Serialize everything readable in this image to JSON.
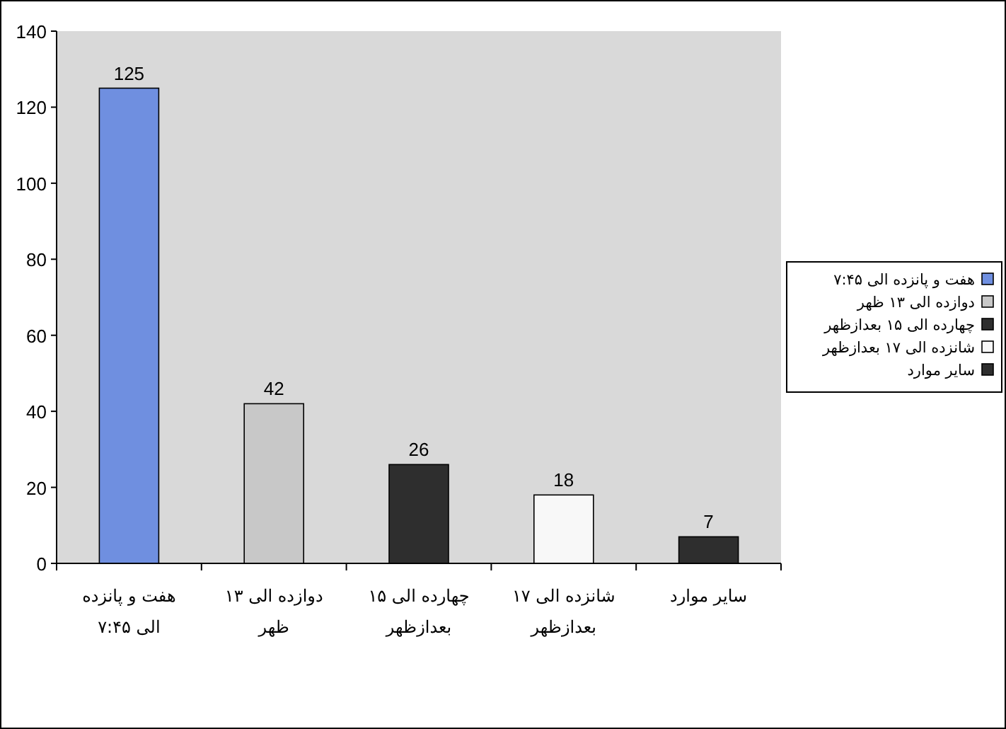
{
  "chart_data": {
    "type": "bar",
    "categories": [
      "هفت و پانزده الی ۷:۴۵",
      "دوازده الی ۱۳ ظهر",
      "چهارده الی ۱۵ بعدازظهر",
      "شانزده الی ۱۷ بعدازظهر",
      "سایر موارد"
    ],
    "series": [
      {
        "name": "هفت و پانزده الی ۷:۴۵",
        "color": "#6f8fe0",
        "values": [
          125,
          null,
          null,
          null,
          null
        ]
      },
      {
        "name": "دوازده الی ۱۳ ظهر",
        "color": "#c8c8c8",
        "values": [
          null,
          42,
          null,
          null,
          null
        ]
      },
      {
        "name": "چهارده الی ۱۵ بعدازظهر",
        "color": "#2e2e2e",
        "values": [
          null,
          null,
          26,
          null,
          null
        ]
      },
      {
        "name": "شانزده الی ۱۷ بعدازظهر",
        "color": "#f8f8f8",
        "values": [
          null,
          null,
          null,
          18,
          null
        ]
      },
      {
        "name": "سایر موارد",
        "color": "#2e2e2e",
        "values": [
          null,
          null,
          null,
          null,
          7
        ]
      }
    ],
    "ylim": [
      0,
      140
    ],
    "yticks": [
      0,
      20,
      40,
      60,
      80,
      100,
      120,
      140
    ],
    "data_labels": true,
    "legend": "right",
    "grid": false
  }
}
